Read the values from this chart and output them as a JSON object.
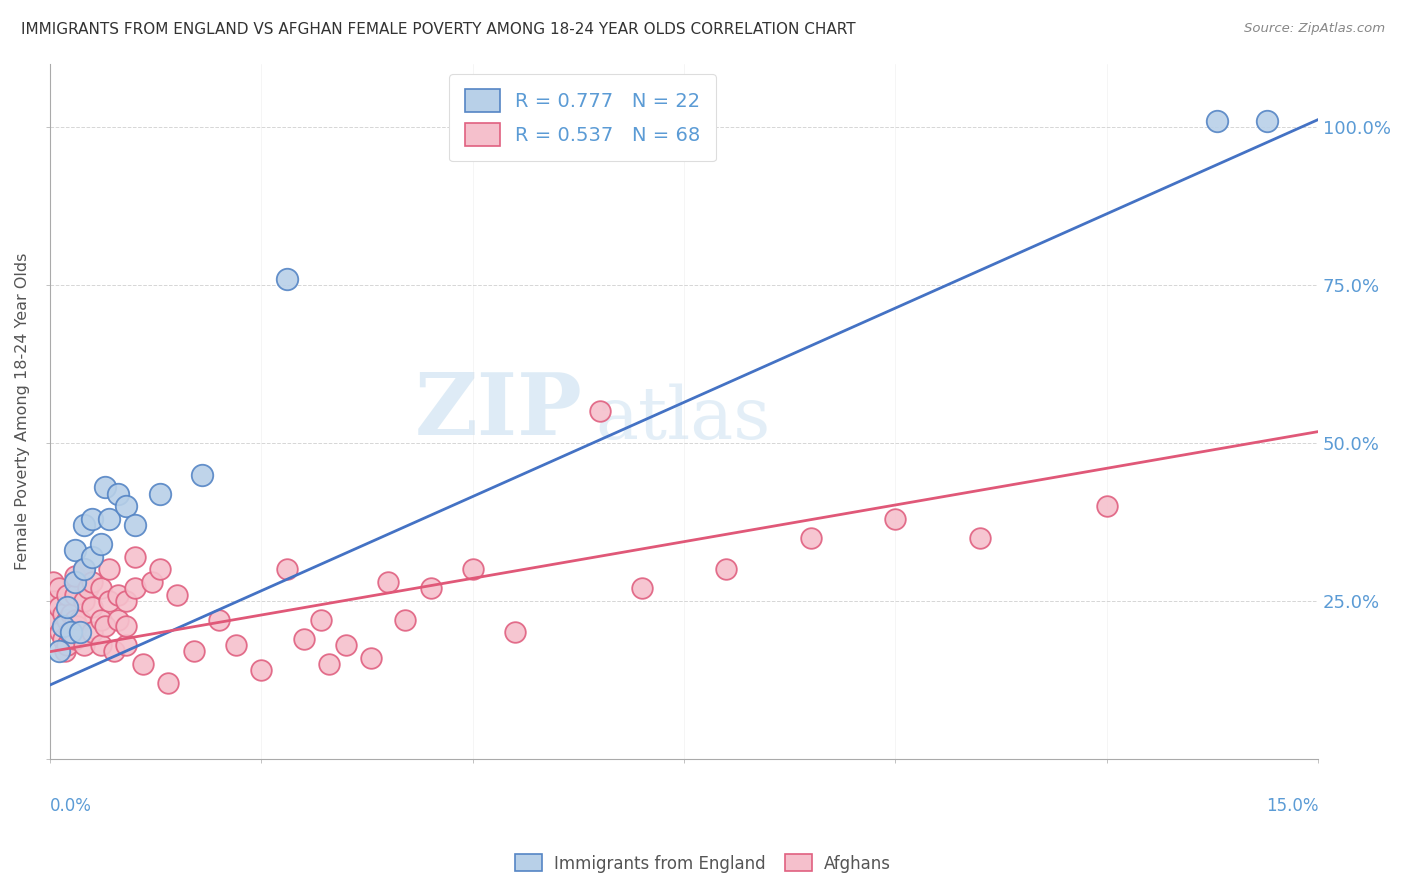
{
  "title": "IMMIGRANTS FROM ENGLAND VS AFGHAN FEMALE POVERTY AMONG 18-24 YEAR OLDS CORRELATION CHART",
  "source": "Source: ZipAtlas.com",
  "ylabel": "Female Poverty Among 18-24 Year Olds",
  "watermark_zip": "ZIP",
  "watermark_atlas": "atlas",
  "legend_label_blue": "Immigrants from England",
  "legend_label_pink": "Afghans",
  "blue_face_color": "#b8d0e8",
  "blue_edge_color": "#5585c5",
  "pink_face_color": "#f5c0cc",
  "pink_edge_color": "#e06080",
  "blue_line_color": "#4472c4",
  "pink_line_color": "#e05878",
  "background_color": "#ffffff",
  "grid_color": "#cccccc",
  "title_color": "#333333",
  "axis_label_color": "#5b9bd5",
  "ylabel_color": "#555555",
  "blue_line_x0": -0.002,
  "blue_line_x1": 0.153,
  "blue_line_y0": 0.105,
  "blue_line_y1": 1.03,
  "pink_line_x0": -0.002,
  "pink_line_x1": 0.153,
  "pink_line_y0": 0.165,
  "pink_line_y1": 0.525,
  "blue_x": [
    0.001,
    0.0015,
    0.002,
    0.0025,
    0.003,
    0.003,
    0.0035,
    0.004,
    0.004,
    0.005,
    0.005,
    0.006,
    0.0065,
    0.007,
    0.008,
    0.009,
    0.01,
    0.013,
    0.018,
    0.028,
    0.138,
    0.144
  ],
  "blue_y": [
    0.17,
    0.21,
    0.24,
    0.2,
    0.28,
    0.33,
    0.2,
    0.3,
    0.37,
    0.32,
    0.38,
    0.34,
    0.43,
    0.38,
    0.42,
    0.4,
    0.37,
    0.42,
    0.45,
    0.76,
    1.01,
    1.01
  ],
  "pink_x": [
    0.0003,
    0.0005,
    0.0007,
    0.001,
    0.001,
    0.0012,
    0.0015,
    0.0015,
    0.0018,
    0.002,
    0.002,
    0.002,
    0.0022,
    0.0025,
    0.003,
    0.003,
    0.003,
    0.003,
    0.0032,
    0.0035,
    0.004,
    0.004,
    0.004,
    0.0045,
    0.005,
    0.005,
    0.005,
    0.006,
    0.006,
    0.006,
    0.0065,
    0.007,
    0.007,
    0.0075,
    0.008,
    0.008,
    0.009,
    0.009,
    0.009,
    0.01,
    0.01,
    0.011,
    0.012,
    0.013,
    0.014,
    0.015,
    0.017,
    0.02,
    0.022,
    0.025,
    0.028,
    0.03,
    0.032,
    0.033,
    0.035,
    0.038,
    0.04,
    0.042,
    0.045,
    0.05,
    0.055,
    0.065,
    0.07,
    0.08,
    0.09,
    0.1,
    0.11,
    0.125
  ],
  "pink_y": [
    0.28,
    0.25,
    0.22,
    0.27,
    0.24,
    0.2,
    0.19,
    0.23,
    0.17,
    0.18,
    0.22,
    0.26,
    0.2,
    0.23,
    0.19,
    0.22,
    0.26,
    0.29,
    0.21,
    0.22,
    0.18,
    0.25,
    0.3,
    0.27,
    0.2,
    0.24,
    0.28,
    0.18,
    0.22,
    0.27,
    0.21,
    0.25,
    0.3,
    0.17,
    0.22,
    0.26,
    0.18,
    0.21,
    0.25,
    0.27,
    0.32,
    0.15,
    0.28,
    0.3,
    0.12,
    0.26,
    0.17,
    0.22,
    0.18,
    0.14,
    0.3,
    0.19,
    0.22,
    0.15,
    0.18,
    0.16,
    0.28,
    0.22,
    0.27,
    0.3,
    0.2,
    0.55,
    0.27,
    0.3,
    0.35,
    0.38,
    0.35,
    0.4
  ],
  "xlim": [
    0.0,
    0.15
  ],
  "ylim": [
    0.0,
    1.1
  ],
  "yticks": [
    0.0,
    0.25,
    0.5,
    0.75,
    1.0
  ],
  "ytick_labels": [
    "",
    "25.0%",
    "50.0%",
    "75.0%",
    "100.0%"
  ],
  "xticks": [
    0.0,
    0.025,
    0.05,
    0.075,
    0.1,
    0.125,
    0.15
  ]
}
